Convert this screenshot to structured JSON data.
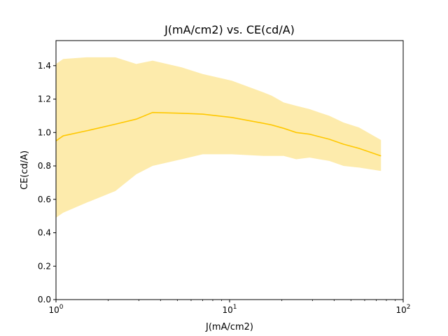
{
  "chart_data": {
    "type": "area",
    "title": "J(mA/cm2) vs. CE(cd/A)",
    "xlabel": "J(mA/cm2)",
    "ylabel": "CE(cd/A)",
    "xscale": "log",
    "xlim": [
      1,
      100
    ],
    "ylim": [
      0,
      1.55
    ],
    "x_ticks": [
      {
        "value": 1,
        "base": "10",
        "exp": "0"
      },
      {
        "value": 10,
        "base": "10",
        "exp": "1"
      },
      {
        "value": 100,
        "base": "10",
        "exp": "2"
      }
    ],
    "y_ticks": [
      "0.0",
      "0.2",
      "0.4",
      "0.6",
      "0.8",
      "1.0",
      "1.2",
      "1.4"
    ],
    "grid": false,
    "colors": {
      "line": "#ffc800",
      "band": "#fdeaa8"
    },
    "series": [
      {
        "x": [
          1.0,
          1.1,
          1.5,
          2.2,
          2.9,
          3.6,
          5.3,
          7.0,
          10.3,
          15.7,
          17.5,
          20.5,
          24.2,
          28.9,
          32.8,
          37.5,
          45.3,
          55.7,
          74.5
        ],
        "mean": [
          0.95,
          0.98,
          1.01,
          1.05,
          1.08,
          1.12,
          1.115,
          1.11,
          1.09,
          1.055,
          1.045,
          1.025,
          1.0,
          0.99,
          0.975,
          0.96,
          0.93,
          0.905,
          0.86
        ],
        "upper": [
          1.41,
          1.44,
          1.45,
          1.45,
          1.41,
          1.43,
          1.39,
          1.35,
          1.31,
          1.24,
          1.22,
          1.18,
          1.16,
          1.14,
          1.12,
          1.1,
          1.06,
          1.03,
          0.955
        ],
        "lower": [
          0.49,
          0.52,
          0.58,
          0.65,
          0.75,
          0.8,
          0.84,
          0.87,
          0.87,
          0.86,
          0.86,
          0.86,
          0.84,
          0.85,
          0.84,
          0.83,
          0.8,
          0.79,
          0.77
        ]
      }
    ]
  }
}
